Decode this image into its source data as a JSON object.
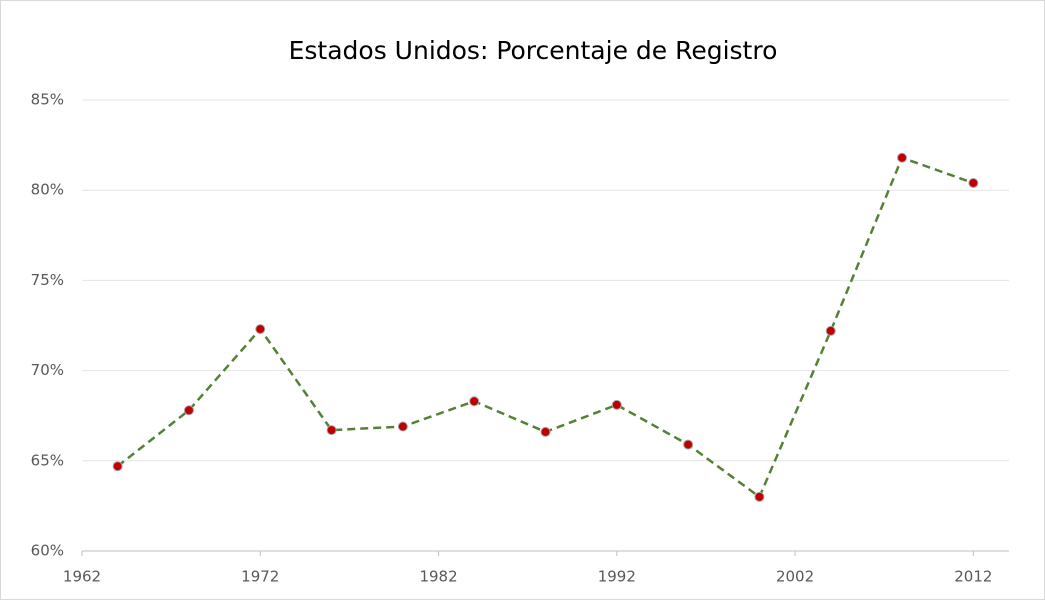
{
  "chart_data": {
    "type": "line",
    "title": "Estados Unidos: Porcentaje de Registro",
    "x": [
      1964,
      1968,
      1972,
      1976,
      1980,
      1984,
      1988,
      1992,
      1996,
      2000,
      2004,
      2008,
      2012
    ],
    "values": [
      64.7,
      67.8,
      72.3,
      66.7,
      66.9,
      68.3,
      66.6,
      68.1,
      65.9,
      63.0,
      72.2,
      81.8,
      80.4
    ],
    "color": "#548235",
    "marker_color": "#c00000",
    "line_style": "dashed",
    "xlim": [
      1962,
      2014
    ],
    "xticks": [
      1962,
      1972,
      1982,
      1992,
      2002,
      2012
    ],
    "ylim": [
      60,
      85
    ],
    "yticks": [
      {
        "value": 60,
        "label": "60%"
      },
      {
        "value": 65,
        "label": "65%"
      },
      {
        "value": 70,
        "label": "70%"
      },
      {
        "value": 75,
        "label": "75%"
      },
      {
        "value": 80,
        "label": "80%"
      },
      {
        "value": 85,
        "label": "85%"
      }
    ],
    "grid": true
  }
}
